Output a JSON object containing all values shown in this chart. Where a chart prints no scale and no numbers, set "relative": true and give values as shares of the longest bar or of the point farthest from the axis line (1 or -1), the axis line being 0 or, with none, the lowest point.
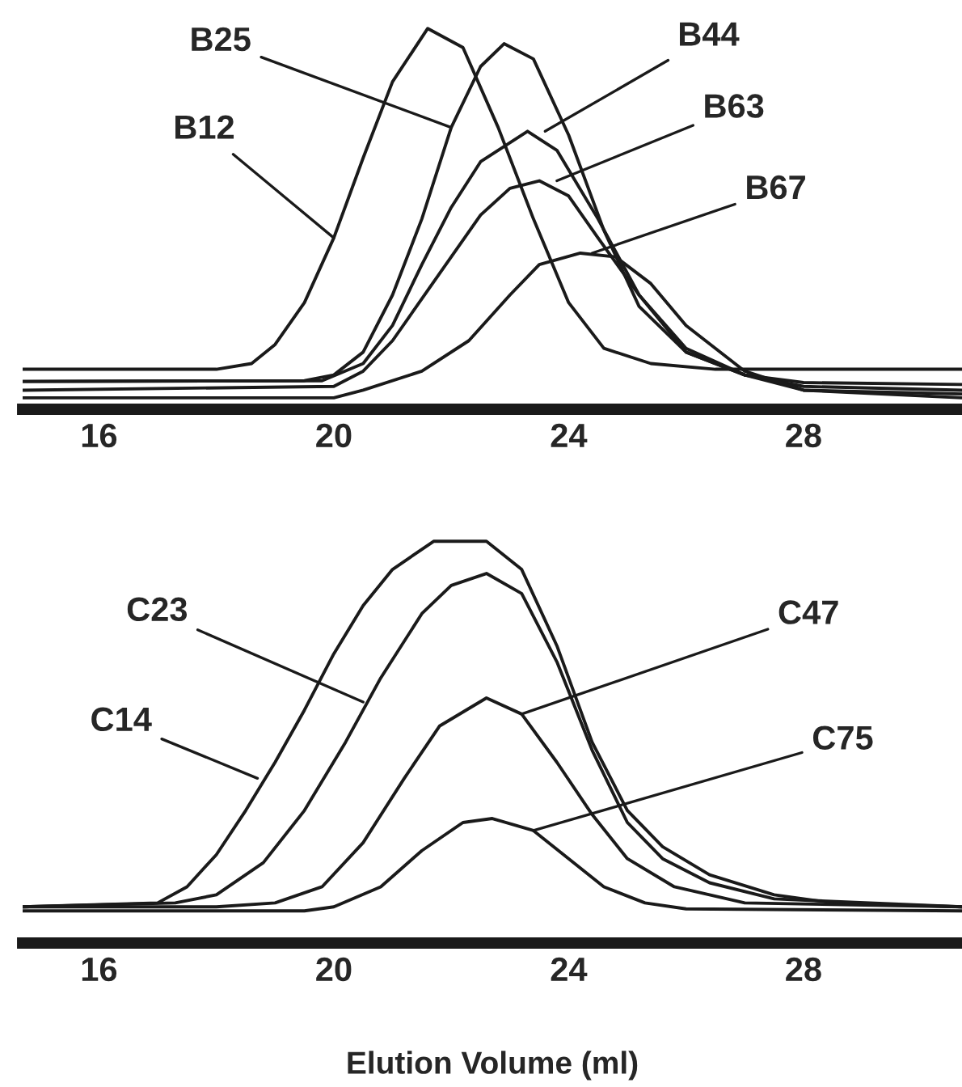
{
  "chart_data": [
    {
      "type": "line",
      "relative": true,
      "xlim": [
        14.7,
        30.7
      ],
      "xticks": [
        16,
        20,
        24,
        28
      ],
      "tick_labels": "x",
      "grid": false,
      "marker": "none",
      "line_style": "solid",
      "series": [
        {
          "color": "#1a1a1a",
          "x": [
            14.7,
            18.0,
            18.6,
            19.0,
            19.5,
            20.0,
            20.5,
            21.0,
            21.6,
            22.2,
            22.8,
            23.4,
            24.0,
            24.6,
            25.4,
            26.5,
            30.7
          ],
          "values": [
            0.105,
            0.105,
            0.12,
            0.17,
            0.28,
            0.45,
            0.66,
            0.86,
            1.0,
            0.95,
            0.74,
            0.5,
            0.28,
            0.16,
            0.12,
            0.105,
            0.105
          ]
        },
        {
          "color": "#1a1a1a",
          "x": [
            14.7,
            19.5,
            20.0,
            20.5,
            21.0,
            21.5,
            22.0,
            22.5,
            22.9,
            23.4,
            24.0,
            24.6,
            25.2,
            26.0,
            27.0,
            28.0,
            30.7
          ],
          "values": [
            0.073,
            0.075,
            0.09,
            0.15,
            0.3,
            0.5,
            0.74,
            0.9,
            0.96,
            0.92,
            0.72,
            0.47,
            0.27,
            0.15,
            0.09,
            0.07,
            0.065
          ]
        },
        {
          "color": "#1a1a1a",
          "x": [
            14.7,
            19.8,
            20.5,
            21.0,
            21.5,
            22.0,
            22.5,
            23.3,
            23.8,
            24.5,
            25.2,
            26.0,
            27.0,
            28.0,
            30.7
          ],
          "values": [
            0.073,
            0.075,
            0.12,
            0.22,
            0.38,
            0.53,
            0.65,
            0.73,
            0.68,
            0.5,
            0.3,
            0.15,
            0.09,
            0.06,
            0.05
          ]
        },
        {
          "color": "#1a1a1a",
          "x": [
            14.7,
            20.0,
            20.5,
            21.0,
            21.5,
            22.0,
            22.5,
            23.0,
            23.5,
            24.0,
            24.5,
            25.2,
            26.0,
            27.0,
            28.0,
            30.7
          ],
          "values": [
            0.05,
            0.06,
            0.1,
            0.18,
            0.29,
            0.4,
            0.51,
            0.58,
            0.6,
            0.56,
            0.45,
            0.3,
            0.16,
            0.09,
            0.05,
            0.04
          ]
        },
        {
          "color": "#1a1a1a",
          "x": [
            14.7,
            20.0,
            20.5,
            21.5,
            22.3,
            23.0,
            23.5,
            24.2,
            24.8,
            25.4,
            26.0,
            27.0,
            28.0,
            30.7
          ],
          "values": [
            0.03,
            0.03,
            0.05,
            0.1,
            0.18,
            0.3,
            0.38,
            0.41,
            0.4,
            0.33,
            0.22,
            0.1,
            0.05,
            0.03
          ]
        }
      ],
      "annotations": [
        {
          "text": "B12",
          "x": 20.0,
          "y": 0.45
        },
        {
          "text": "B25",
          "x": 22.0,
          "y": 0.74
        },
        {
          "text": "B44",
          "x": 23.6,
          "y": 0.73
        },
        {
          "text": "B63",
          "x": 23.8,
          "y": 0.6
        },
        {
          "text": "B67",
          "x": 24.4,
          "y": 0.41
        }
      ]
    },
    {
      "type": "line",
      "relative": true,
      "xlim": [
        14.7,
        30.7
      ],
      "xticks": [
        16,
        20,
        24,
        28
      ],
      "tick_labels": "x",
      "grid": false,
      "marker": "none",
      "line_style": "solid",
      "xlabel": "Elution Volume (ml)",
      "series": [
        {
          "color": "#1a1a1a",
          "x": [
            14.7,
            17.0,
            17.5,
            18.0,
            18.5,
            19.0,
            19.5,
            20.0,
            20.5,
            21.0,
            21.7,
            22.6,
            23.2,
            23.8,
            24.4,
            25.0,
            25.6,
            26.4,
            27.5,
            28.5,
            30.7
          ],
          "values": [
            0.09,
            0.1,
            0.14,
            0.22,
            0.33,
            0.45,
            0.58,
            0.72,
            0.84,
            0.93,
            1.0,
            1.0,
            0.93,
            0.74,
            0.5,
            0.33,
            0.24,
            0.17,
            0.12,
            0.1,
            0.09
          ]
        },
        {
          "color": "#1a1a1a",
          "x": [
            14.7,
            17.3,
            18.0,
            18.8,
            19.5,
            20.2,
            20.8,
            21.5,
            22.0,
            22.6,
            23.2,
            23.8,
            24.4,
            25.0,
            25.6,
            26.4,
            27.5,
            30.7
          ],
          "values": [
            0.09,
            0.1,
            0.12,
            0.2,
            0.33,
            0.5,
            0.66,
            0.82,
            0.89,
            0.92,
            0.87,
            0.7,
            0.48,
            0.3,
            0.21,
            0.15,
            0.11,
            0.09
          ]
        },
        {
          "color": "#1a1a1a",
          "x": [
            14.7,
            18.0,
            19.0,
            19.8,
            20.5,
            21.2,
            21.8,
            22.6,
            23.2,
            23.8,
            24.4,
            25.0,
            25.8,
            27.0,
            30.7
          ],
          "values": [
            0.09,
            0.09,
            0.1,
            0.14,
            0.25,
            0.41,
            0.54,
            0.61,
            0.57,
            0.45,
            0.32,
            0.21,
            0.14,
            0.1,
            0.09
          ]
        },
        {
          "color": "#1a1a1a",
          "x": [
            14.7,
            19.5,
            20.0,
            20.8,
            21.5,
            22.2,
            22.7,
            23.4,
            24.0,
            24.6,
            25.3,
            26.0,
            30.7
          ],
          "values": [
            0.08,
            0.08,
            0.09,
            0.14,
            0.23,
            0.3,
            0.31,
            0.28,
            0.21,
            0.14,
            0.1,
            0.085,
            0.08
          ]
        }
      ],
      "annotations": [
        {
          "text": "C23",
          "x": 20.5,
          "y": 0.6
        },
        {
          "text": "C14",
          "x": 18.7,
          "y": 0.41
        },
        {
          "text": "C47",
          "x": 23.2,
          "y": 0.57
        },
        {
          "text": "C75",
          "x": 23.4,
          "y": 0.28
        }
      ]
    }
  ]
}
